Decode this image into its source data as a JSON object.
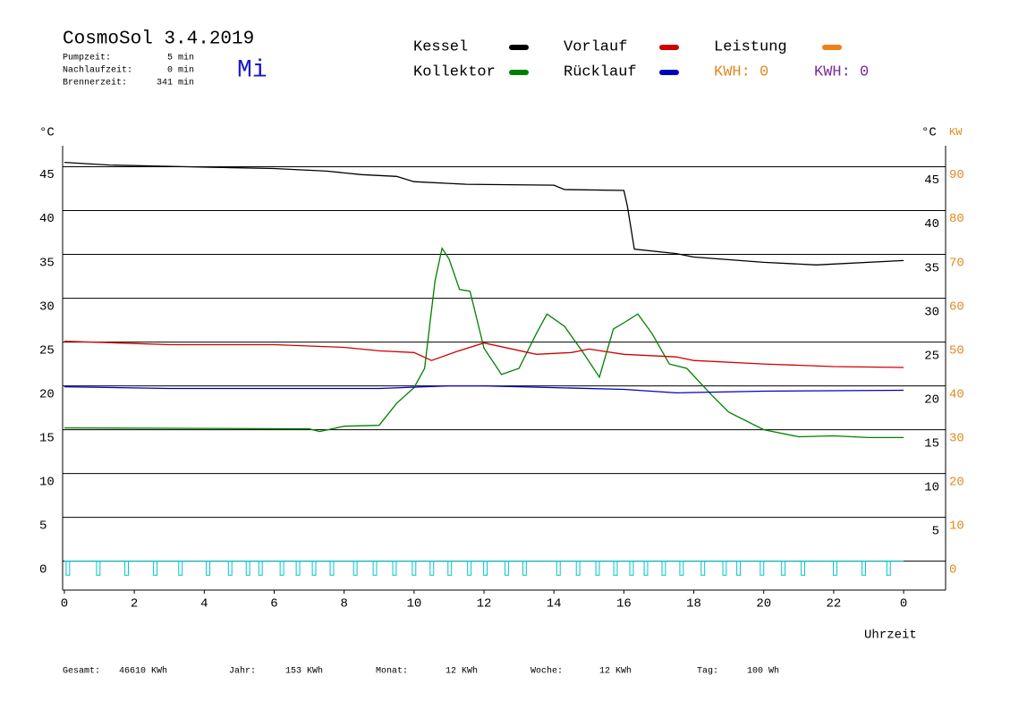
{
  "chart_data": {
    "type": "line",
    "title": "CosmoSol 3.4.2019",
    "day": "Mi",
    "info": [
      {
        "label": "Pumpzeit:",
        "value": "5 min"
      },
      {
        "label": "Nachlaufzeit:",
        "value": "0 min"
      },
      {
        "label": "Brennerzeit:",
        "value": "341 min"
      }
    ],
    "y_label": "°C",
    "y_right_label": "°C",
    "y2_label": "KW",
    "x_label": "Uhrzeit",
    "xlim": [
      -0.05,
      25.2
    ],
    "xticks": [
      0,
      2,
      4,
      6,
      8,
      10,
      12,
      14,
      16,
      18,
      20,
      22,
      {
        "value": 24,
        "label": "0"
      }
    ],
    "ylim": [
      -3.3,
      47.4
    ],
    "yticks": [
      0,
      5,
      10,
      15,
      20,
      25,
      30,
      35,
      40,
      45
    ],
    "yticks_right": [
      5,
      10,
      15,
      20,
      25,
      30,
      35,
      40,
      45
    ],
    "y2lim": [
      -6.6,
      94.8
    ],
    "y2ticks": [
      0,
      10,
      20,
      30,
      40,
      50,
      60,
      70,
      80,
      90
    ],
    "y2color": "#e08a1e",
    "grid": true,
    "series": [
      {
        "name": "Kessel",
        "color": "#000000",
        "x": [
          0,
          1.3,
          3.5,
          6,
          7.5,
          8.5,
          9.5,
          10,
          11.5,
          14,
          14.3,
          16,
          16.1,
          16.3,
          17.5,
          18,
          20,
          21.5,
          24
        ],
        "values": [
          45.5,
          45.2,
          45.0,
          44.8,
          44.5,
          44.1,
          43.9,
          43.3,
          43.0,
          42.9,
          42.4,
          42.3,
          40.5,
          35.6,
          35.1,
          34.7,
          34.1,
          33.8,
          34.3
        ]
      },
      {
        "name": "Kollektor",
        "color": "#008000",
        "x": [
          0,
          7,
          7.3,
          8,
          9,
          9.5,
          10,
          10.3,
          10.6,
          10.8,
          11,
          11.3,
          11.6,
          12,
          12.5,
          13,
          13.5,
          13.8,
          14.3,
          14.8,
          15.3,
          15.7,
          16,
          16.4,
          16.8,
          17.3,
          17.8,
          18.5,
          19,
          20,
          21,
          22,
          23,
          24
        ],
        "values": [
          15.2,
          15.1,
          14.8,
          15.4,
          15.5,
          18,
          19.8,
          22,
          32,
          35.7,
          34.5,
          31,
          30.8,
          24.3,
          21.3,
          22,
          26,
          28.2,
          26.8,
          24,
          21,
          26.5,
          27.2,
          28.2,
          26,
          22.5,
          22,
          19,
          17,
          15,
          14.2,
          14.3,
          14.1,
          14.1
        ]
      },
      {
        "name": "Vorlauf",
        "color": "#d00000",
        "x": [
          0,
          3,
          6,
          8,
          9,
          10,
          10.5,
          11.2,
          12,
          13.5,
          14.5,
          15,
          16,
          17.5,
          18,
          20,
          22,
          24
        ],
        "values": [
          25.1,
          24.7,
          24.7,
          24.4,
          24.0,
          23.8,
          22.9,
          23.9,
          24.9,
          23.6,
          23.8,
          24.2,
          23.6,
          23.3,
          22.9,
          22.5,
          22.2,
          22.1
        ]
      },
      {
        "name": "Rücklauf",
        "color": "#0000c0",
        "x": [
          0,
          3,
          6,
          9,
          11,
          12,
          16,
          17.5,
          20,
          24
        ],
        "values": [
          19.9,
          19.7,
          19.7,
          19.7,
          20.0,
          20.0,
          19.6,
          19.2,
          19.4,
          19.5
        ]
      },
      {
        "name": "Leistung",
        "color": "#f08018",
        "x": [],
        "values": []
      }
    ],
    "kwh": [
      {
        "text": "KWH: 0",
        "color": "#e08a1e"
      },
      {
        "text": "KWH: 0",
        "color": "#7a2a9a"
      }
    ],
    "pump_pulses": {
      "color": "#00c8c8",
      "level": -1.6,
      "width": 0.1,
      "x": [
        0.05,
        0.92,
        1.73,
        2.55,
        3.27,
        4.06,
        4.69,
        5.2,
        5.56,
        6.17,
        6.63,
        7.09,
        7.6,
        8.27,
        8.83,
        9.39,
        9.95,
        10.46,
        10.97,
        11.53,
        11.99,
        12.6,
        13.11,
        14.08,
        14.64,
        15.2,
        15.71,
        16.17,
        16.58,
        17.09,
        17.6,
        18.21,
        18.83,
        19.23,
        19.9,
        20.51,
        21.07,
        21.99,
        22.81,
        23.52
      ]
    },
    "totals": [
      {
        "label": "Gesamt:",
        "value": "46610 KWh"
      },
      {
        "label": "Jahr:",
        "value": "153 KWh"
      },
      {
        "label": "Monat:",
        "value": "12 KWh"
      },
      {
        "label": "Woche:",
        "value": "12 KWh"
      },
      {
        "label": "Tag:",
        "value": "100 Wh"
      }
    ]
  }
}
